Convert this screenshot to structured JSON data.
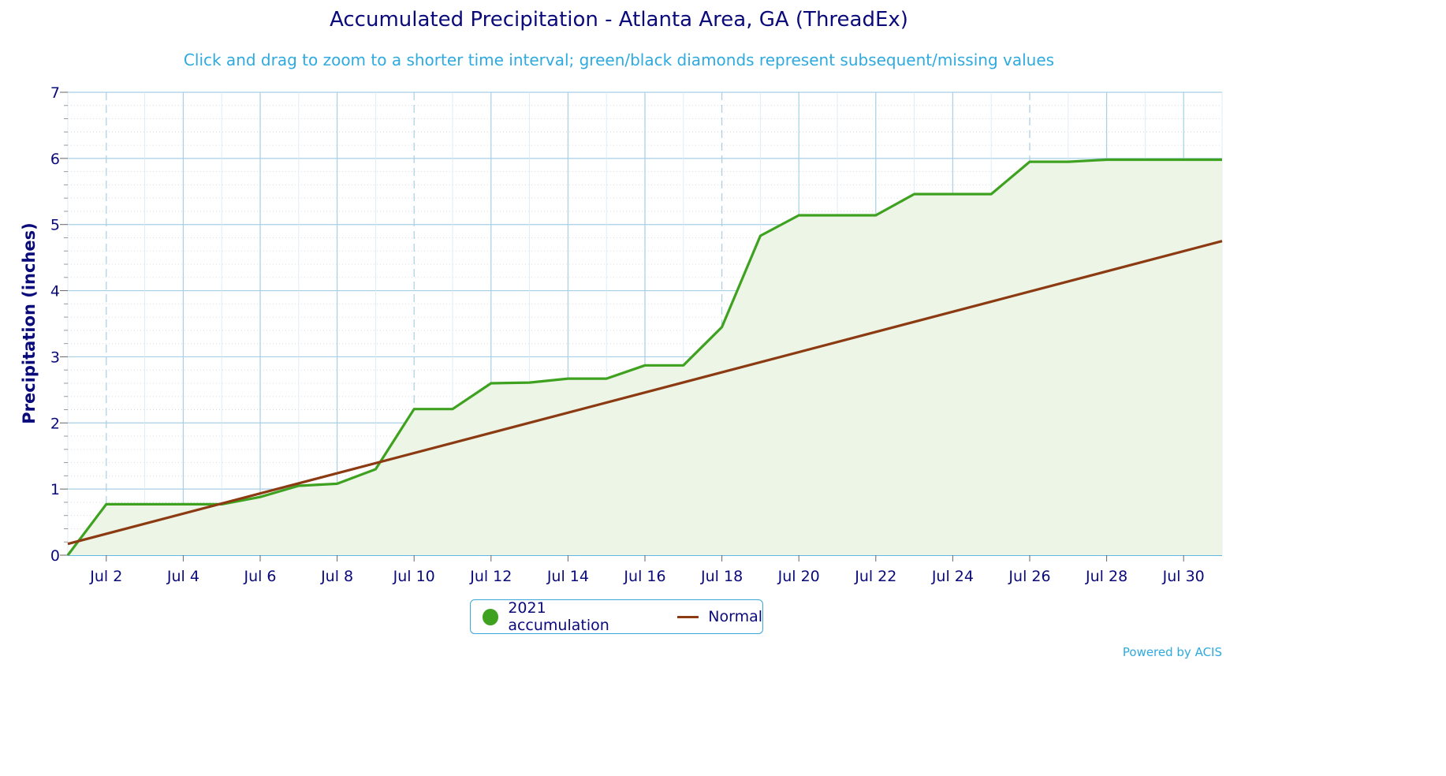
{
  "chart_data": {
    "type": "area",
    "title": "Accumulated Precipitation - Atlanta Area, GA (ThreadEx)",
    "subtitle": "Click and drag to zoom to a shorter time interval; green/black diamonds represent subsequent/missing values",
    "xlabel": "",
    "ylabel": "Precipitation (inches)",
    "ylim": [
      0,
      7
    ],
    "xlim": [
      "2021-07-01",
      "2021-07-31"
    ],
    "yticks": [
      0,
      1,
      2,
      3,
      4,
      5,
      6,
      7
    ],
    "xticks": [
      {
        "date": "2021-07-02",
        "label": "Jul 2"
      },
      {
        "date": "2021-07-04",
        "label": "Jul 4"
      },
      {
        "date": "2021-07-06",
        "label": "Jul 6"
      },
      {
        "date": "2021-07-08",
        "label": "Jul 8"
      },
      {
        "date": "2021-07-10",
        "label": "Jul 10"
      },
      {
        "date": "2021-07-12",
        "label": "Jul 12"
      },
      {
        "date": "2021-07-14",
        "label": "Jul 14"
      },
      {
        "date": "2021-07-16",
        "label": "Jul 16"
      },
      {
        "date": "2021-07-18",
        "label": "Jul 18"
      },
      {
        "date": "2021-07-20",
        "label": "Jul 20"
      },
      {
        "date": "2021-07-22",
        "label": "Jul 22"
      },
      {
        "date": "2021-07-24",
        "label": "Jul 24"
      },
      {
        "date": "2021-07-26",
        "label": "Jul 26"
      },
      {
        "date": "2021-07-28",
        "label": "Jul 28"
      },
      {
        "date": "2021-07-30",
        "label": "Jul 30"
      }
    ],
    "grid": true,
    "legend_position": "bottom-center",
    "series": [
      {
        "name": "2021 accumulation",
        "color": "#3ea220",
        "fill": "#edf5e6",
        "x": [
          "2021-07-01",
          "2021-07-02",
          "2021-07-03",
          "2021-07-04",
          "2021-07-05",
          "2021-07-06",
          "2021-07-07",
          "2021-07-08",
          "2021-07-09",
          "2021-07-10",
          "2021-07-11",
          "2021-07-12",
          "2021-07-13",
          "2021-07-14",
          "2021-07-15",
          "2021-07-16",
          "2021-07-17",
          "2021-07-18",
          "2021-07-19",
          "2021-07-20",
          "2021-07-21",
          "2021-07-22",
          "2021-07-23",
          "2021-07-24",
          "2021-07-25",
          "2021-07-26",
          "2021-07-27",
          "2021-07-28",
          "2021-07-29",
          "2021-07-30",
          "2021-07-31"
        ],
        "values": [
          0.0,
          0.77,
          0.77,
          0.77,
          0.77,
          0.88,
          1.05,
          1.08,
          1.3,
          2.21,
          2.21,
          2.6,
          2.61,
          2.67,
          2.67,
          2.87,
          2.87,
          3.45,
          4.83,
          5.14,
          5.14,
          5.14,
          5.46,
          5.46,
          5.46,
          5.95,
          5.95,
          5.98,
          5.98,
          5.98,
          5.98
        ]
      },
      {
        "name": "Normal",
        "color": "#8b3a12",
        "x": [
          "2021-07-01",
          "2021-07-31"
        ],
        "values": [
          0.17,
          4.75
        ]
      }
    ]
  },
  "legend": {
    "series1_label": "2021 accumulation",
    "series2_label": "Normal"
  },
  "credit": "Powered by ACIS"
}
